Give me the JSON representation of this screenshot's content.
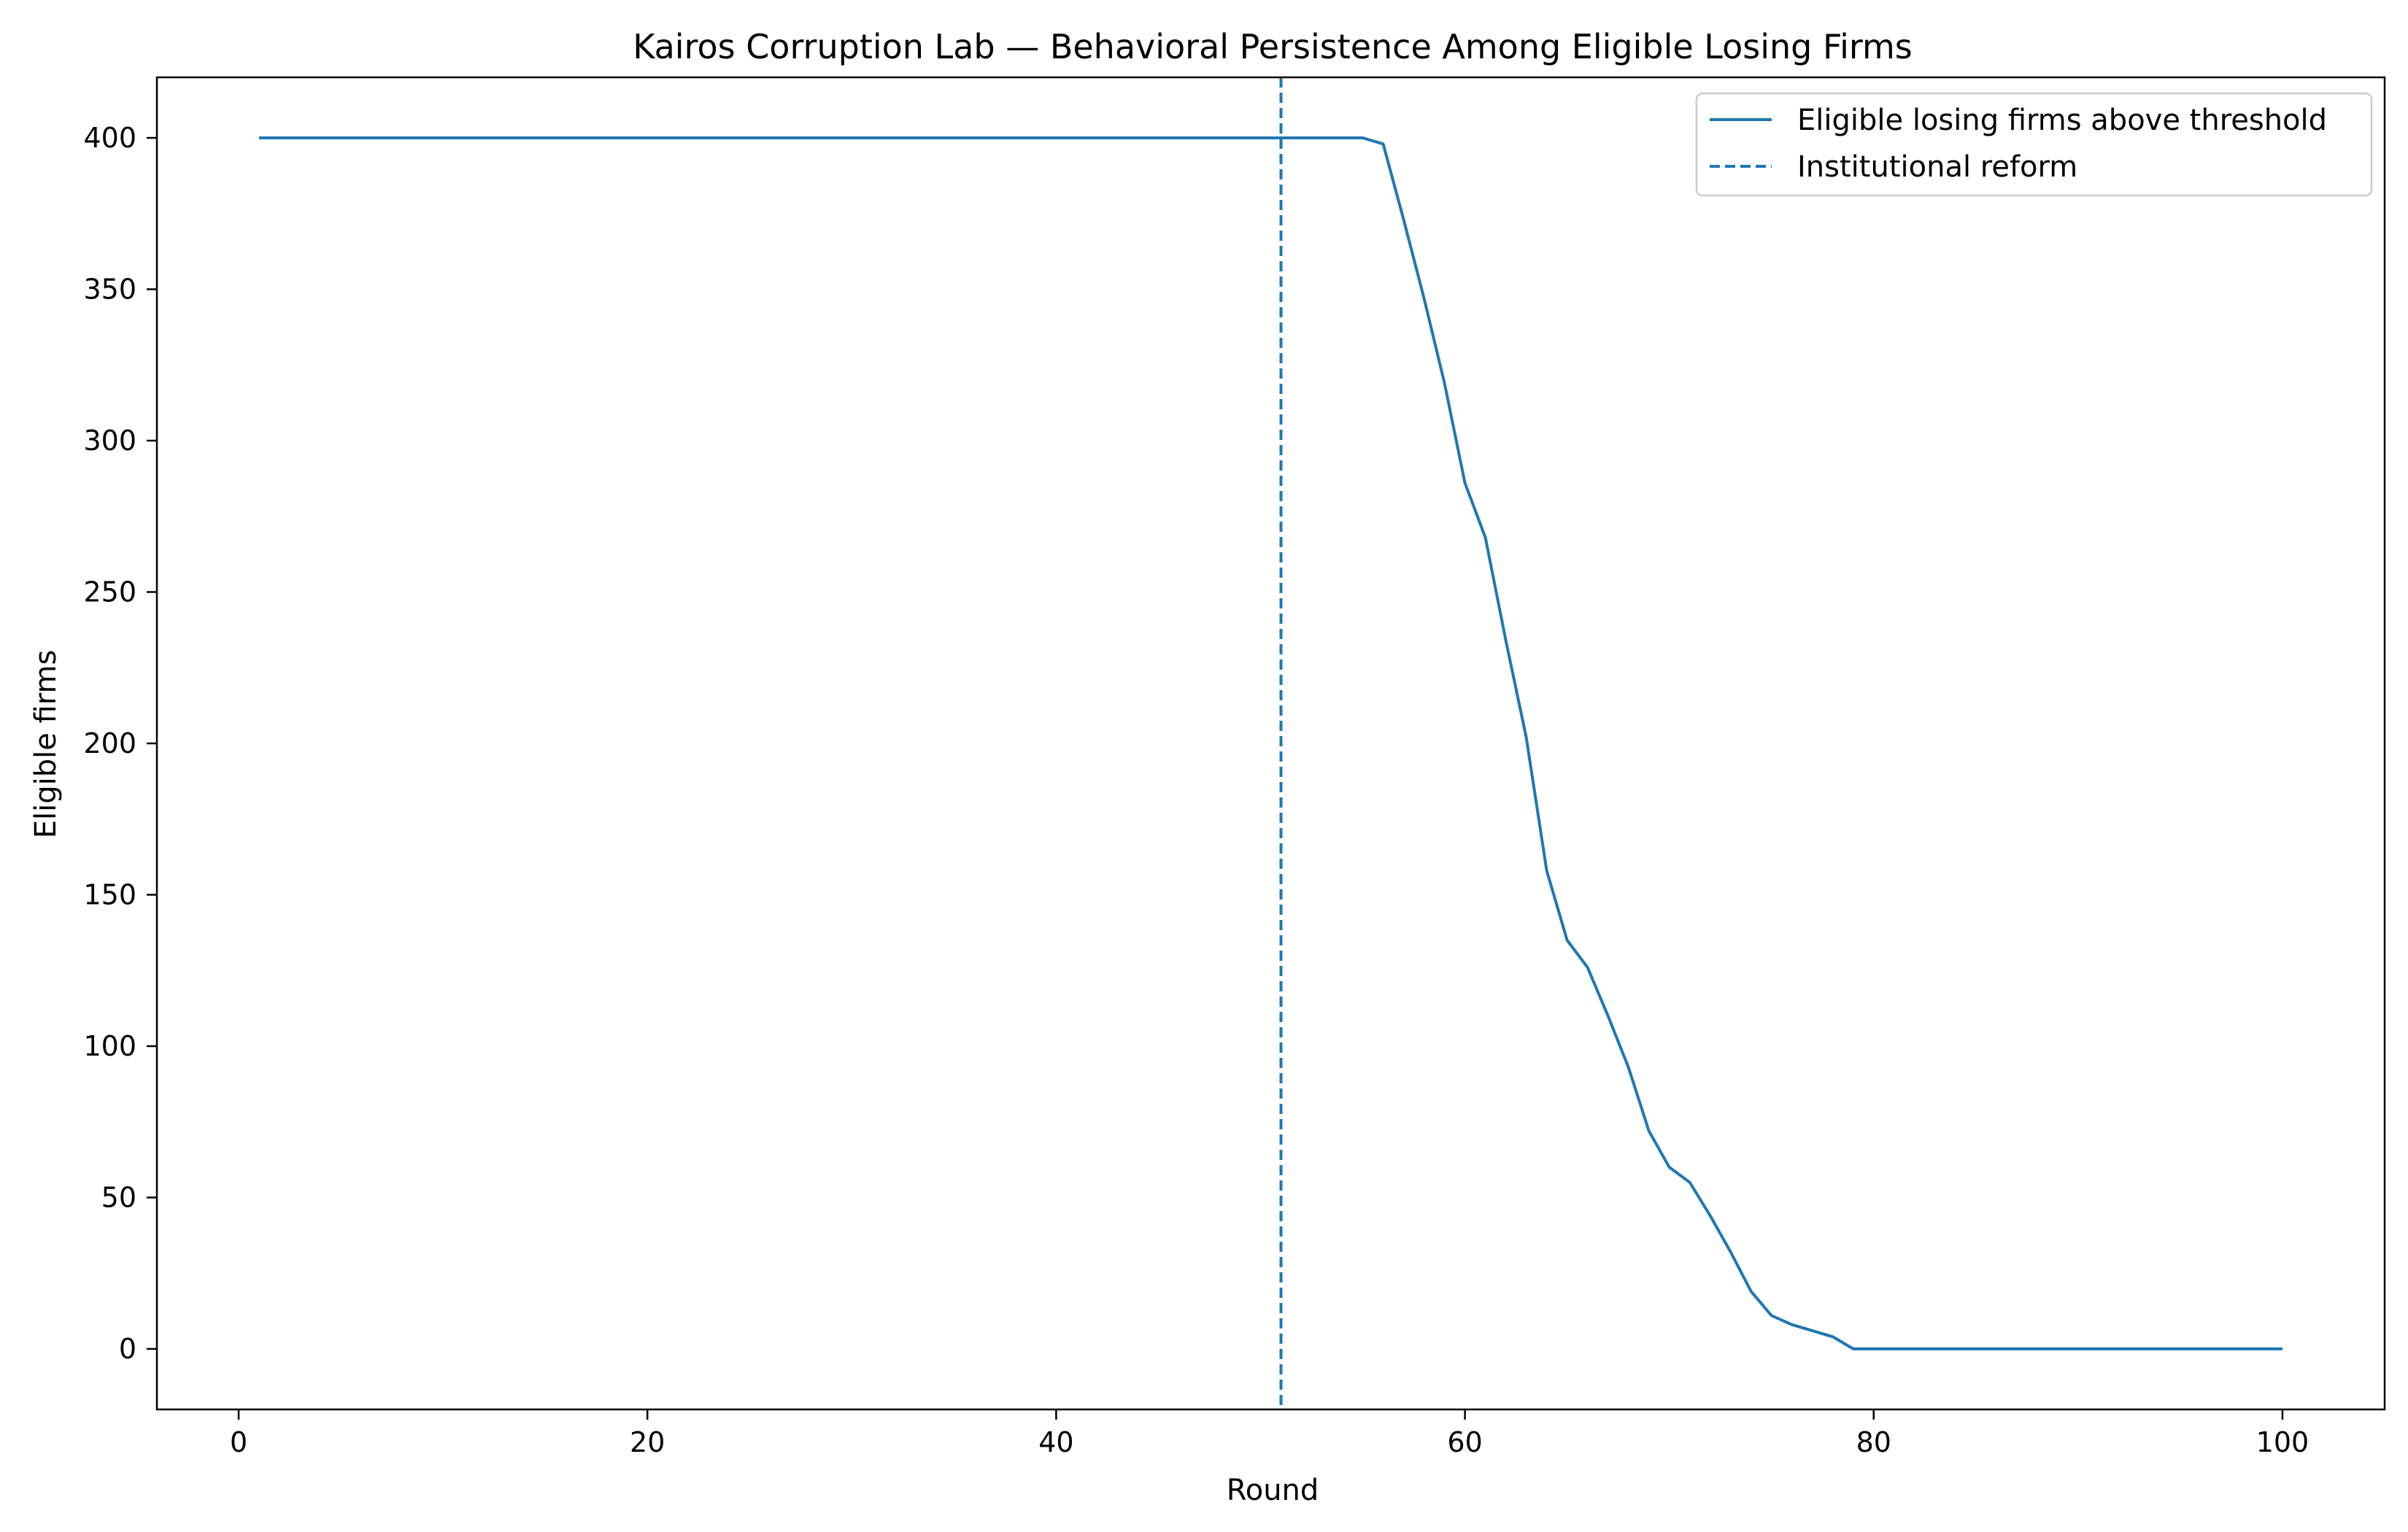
{
  "chart_data": {
    "type": "line",
    "title": "Kairos Corruption Lab — Behavioral Persistence Among Eligible Losing Firms",
    "xlabel": "Round",
    "ylabel": "Eligible firms",
    "xlim": [
      -4,
      105
    ],
    "ylim": [
      -20,
      420
    ],
    "xticks": [
      0,
      20,
      40,
      60,
      80,
      100
    ],
    "yticks": [
      0,
      50,
      100,
      150,
      200,
      250,
      300,
      350,
      400
    ],
    "grid": false,
    "legend_position": "top-right",
    "colors": {
      "series": "#1f77b4",
      "axes": "#000000"
    },
    "series": [
      {
        "name": "Eligible losing firms above threshold",
        "style": "solid",
        "x": [
          1,
          2,
          3,
          4,
          5,
          6,
          7,
          8,
          9,
          10,
          11,
          12,
          13,
          14,
          15,
          16,
          17,
          18,
          19,
          20,
          21,
          22,
          23,
          24,
          25,
          26,
          27,
          28,
          29,
          30,
          31,
          32,
          33,
          34,
          35,
          36,
          37,
          38,
          39,
          40,
          41,
          42,
          43,
          44,
          45,
          46,
          47,
          48,
          49,
          50,
          51,
          52,
          53,
          54,
          55,
          56,
          57,
          58,
          59,
          60,
          61,
          62,
          63,
          64,
          65,
          66,
          67,
          68,
          69,
          70,
          71,
          72,
          73,
          74,
          75,
          76,
          77,
          78,
          79,
          80,
          81,
          82,
          83,
          84,
          85,
          86,
          87,
          88,
          89,
          90,
          91,
          92,
          93,
          94,
          95,
          96,
          97,
          98,
          99,
          100
        ],
        "y": [
          400,
          400,
          400,
          400,
          400,
          400,
          400,
          400,
          400,
          400,
          400,
          400,
          400,
          400,
          400,
          400,
          400,
          400,
          400,
          400,
          400,
          400,
          400,
          400,
          400,
          400,
          400,
          400,
          400,
          400,
          400,
          400,
          400,
          400,
          400,
          400,
          400,
          400,
          400,
          400,
          400,
          400,
          400,
          400,
          400,
          400,
          400,
          400,
          400,
          400,
          400,
          400,
          400,
          400,
          400,
          398,
          373,
          347,
          319,
          286,
          268,
          234,
          202,
          158,
          135,
          126,
          110,
          93,
          72,
          60,
          55,
          44,
          32,
          19,
          11,
          8,
          6,
          4,
          0,
          0,
          0,
          0,
          0,
          0,
          0,
          0,
          0,
          0,
          0,
          0,
          0,
          0,
          0,
          0,
          0,
          0,
          0,
          0,
          0,
          0
        ]
      }
    ],
    "vlines": [
      {
        "name": "Institutional reform",
        "x": 51,
        "style": "dashed"
      }
    ]
  }
}
